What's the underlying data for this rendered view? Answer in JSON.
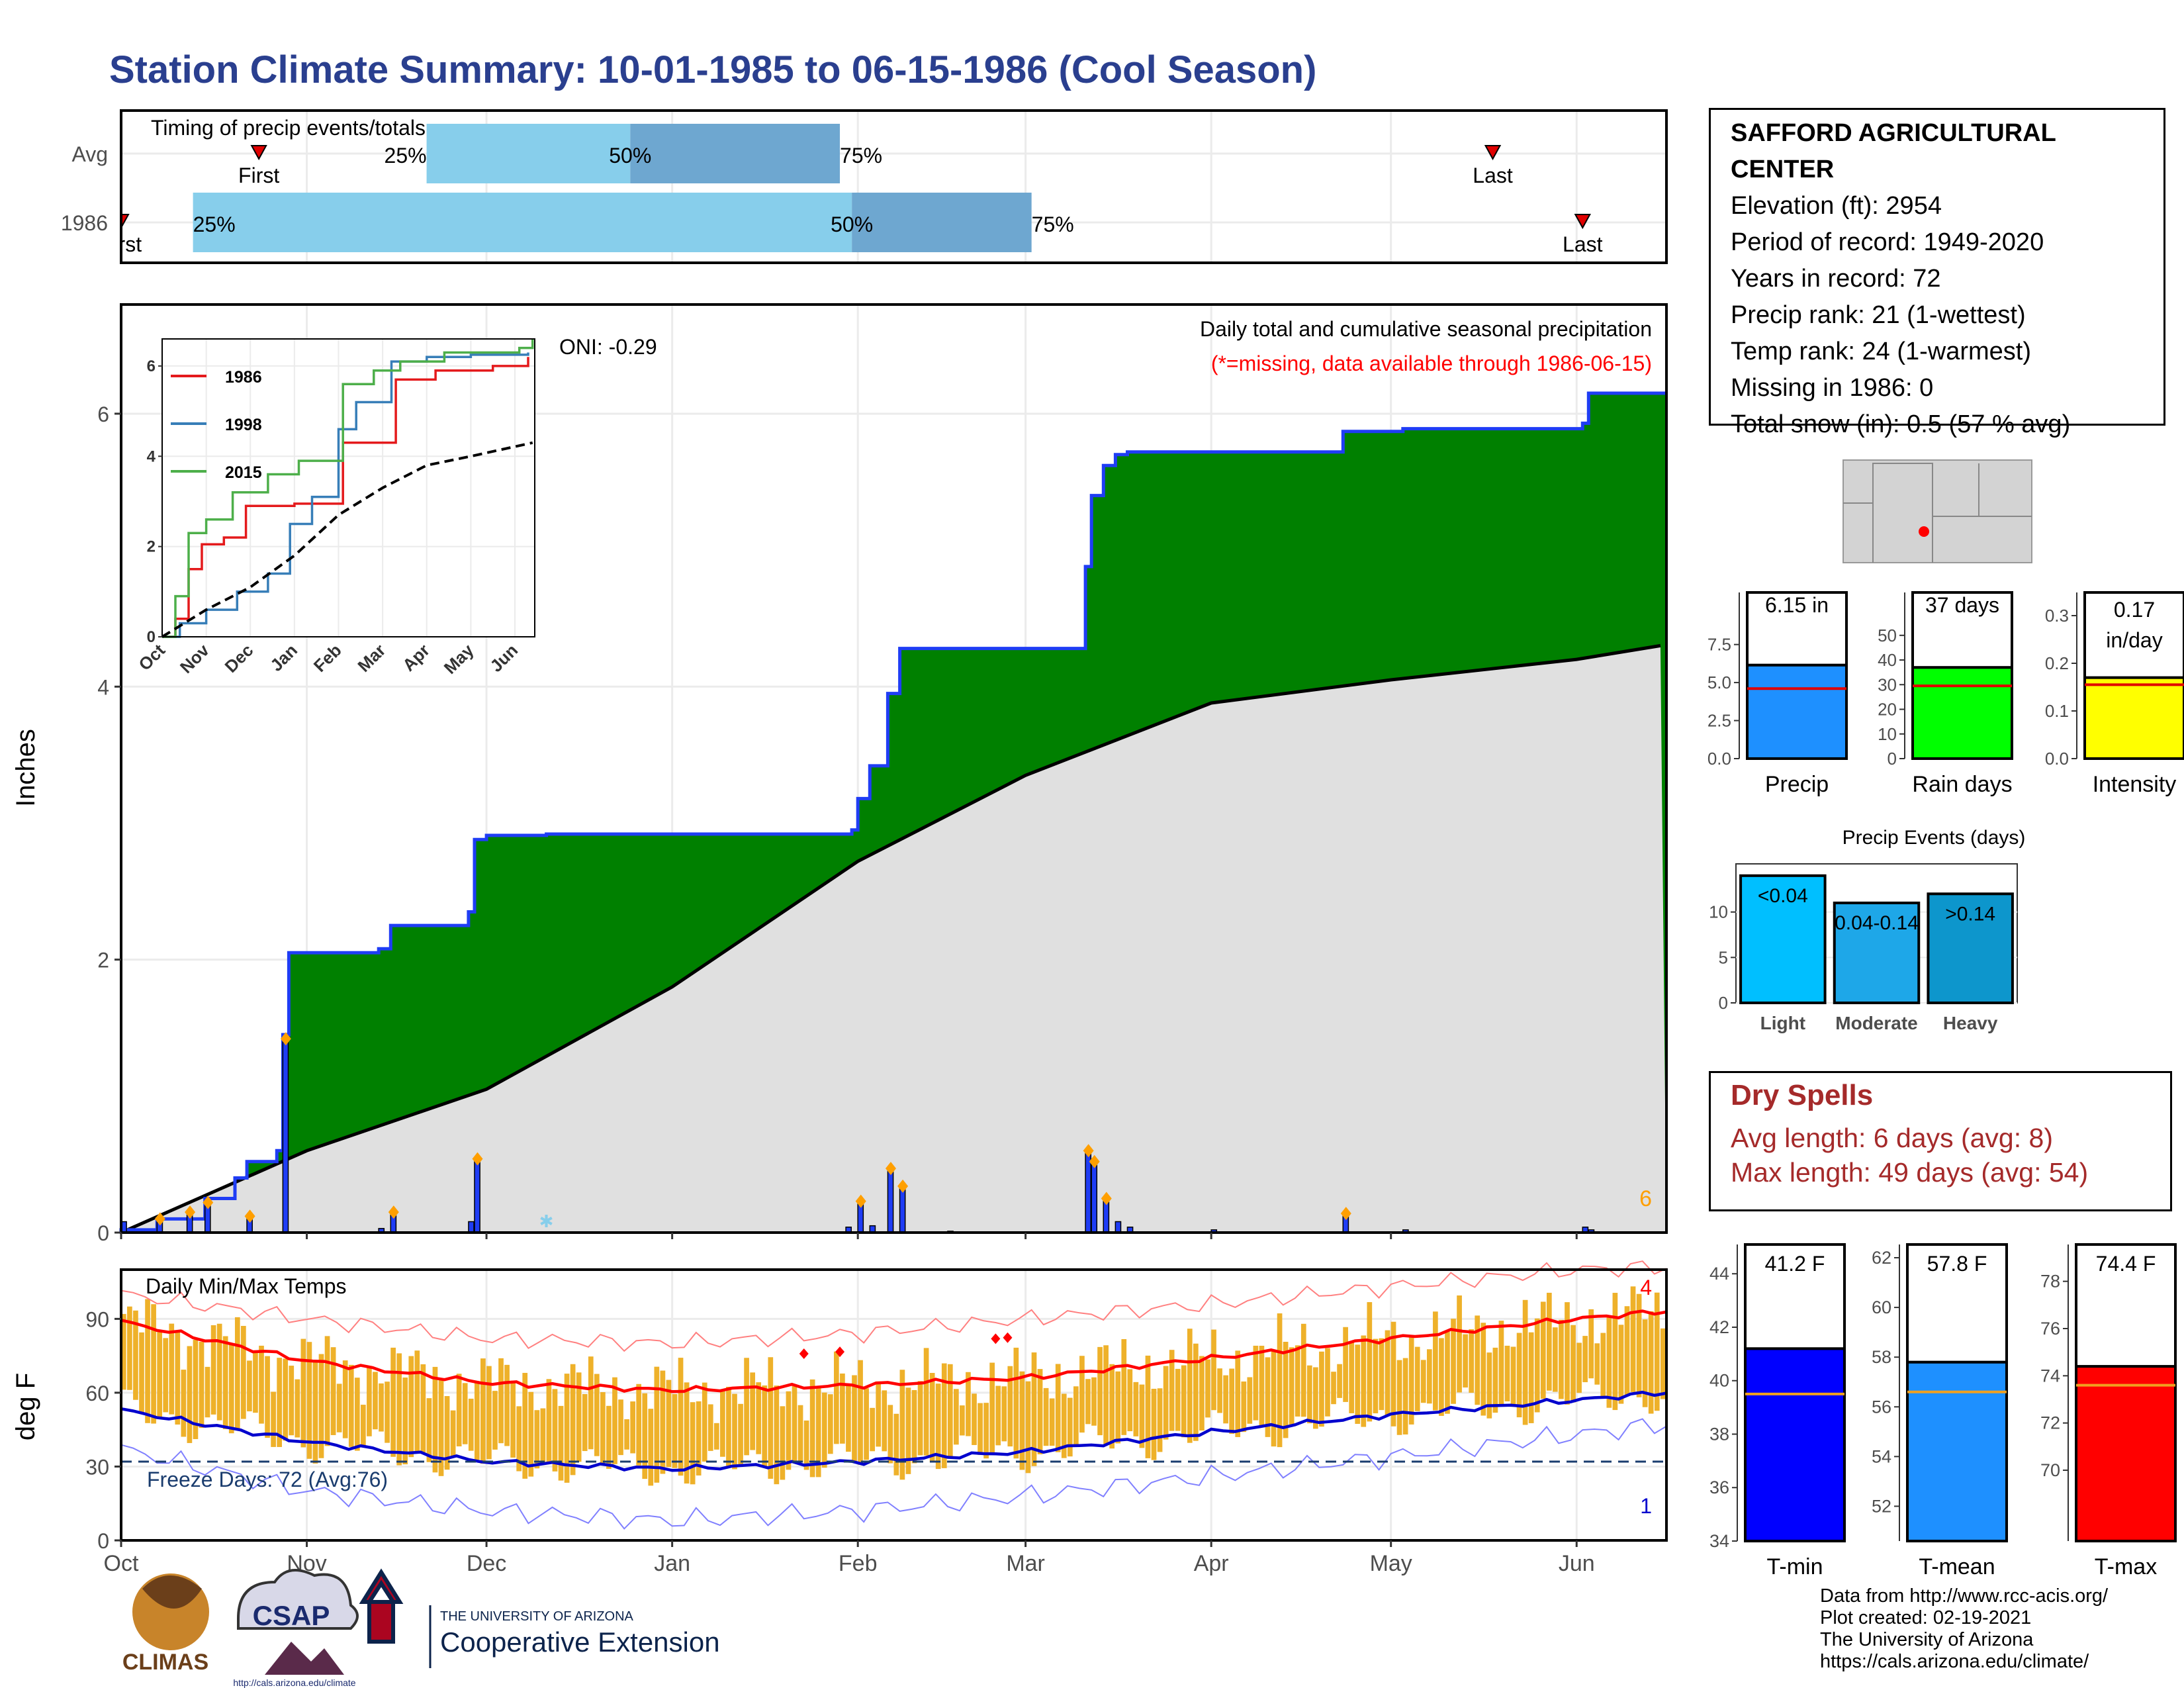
{
  "title": "Station Climate Summary: 10-01-1985 to 06-15-1986 (Cool Season)",
  "colors": {
    "title": "#2a3f8f",
    "precip_fill": "#008000",
    "normal_fill": "#e0e0e0",
    "bar": "#1f3df5",
    "temp_bar": "#eeb12a",
    "tmax": "#ff0000",
    "tmin": "#0000cd"
  },
  "timing_panel": {
    "title": "Timing of precip events/totals",
    "rows": [
      {
        "label": "Avg",
        "first_label": "First",
        "last_label": "Last",
        "first_date": "1985-10-24",
        "last_date": "1986-05-18",
        "p25": "1985-11-21",
        "p50": "1985-12-25",
        "p75": "1986-01-29",
        "p25_label": "25%",
        "p50_label": "50%",
        "p75_label": "75%"
      },
      {
        "label": "1986",
        "first_label": "First",
        "last_label": "Last",
        "first_date": "1985-10-01",
        "last_date": "1986-06-02",
        "p25": "1985-10-13",
        "p50": "1986-01-31",
        "p75": "1986-03-02",
        "p25_label": "25%",
        "p50_label": "50%",
        "p75_label": "75%"
      }
    ]
  },
  "oni_label": "ONI: -0.29",
  "precip_panel_title": "Daily total and cumulative seasonal precipitation",
  "precip_panel_note": "(*=missing, data available through 1986-06-15)",
  "precip_ylabel": "Inches",
  "precip_corner_count": "6",
  "temp_panel_title": "Daily Min/Max Temps",
  "temp_ylabel": "deg F",
  "freeze_label": "Freeze Days: 72 (Avg:76)",
  "temp_corner_max": "4",
  "temp_corner_min": "1",
  "x_month_labels": [
    "Oct",
    "Nov",
    "Dec",
    "Jan",
    "Feb",
    "Mar",
    "Apr",
    "May",
    "Jun"
  ],
  "inset_month_labels": [
    "Oct",
    "Nov",
    "Dec",
    "Jan",
    "Feb",
    "Mar",
    "Apr",
    "May",
    "Jun"
  ],
  "station": {
    "name": "SAFFORD AGRICULTURAL CENTER",
    "lines": [
      "Elevation (ft): 2954",
      "Period of record: 1949-2020",
      "Years in record: 72",
      "Precip rank: 21 (1-wettest)",
      "Temp rank: 24 (1-warmest)",
      "Missing in 1986: 0",
      "Total snow (in): 0.5 (57 % avg)"
    ]
  },
  "summary_bars": [
    {
      "label": "Precip",
      "value": 6.15,
      "avg": 4.6,
      "value_label": "6.15 in",
      "ylim": [
        0,
        9.4
      ],
      "ticks": [
        "0.0",
        "2.5",
        "5.0",
        "7.5"
      ],
      "color": "#1e90ff"
    },
    {
      "label": "Rain days",
      "value": 37,
      "avg": 29.5,
      "value_label": "37 days",
      "ylim": [
        0,
        58
      ],
      "ticks": [
        "0",
        "10",
        "20",
        "30",
        "40",
        "50"
      ],
      "color": "#00ff00"
    },
    {
      "label": "Intensity",
      "value": 0.17,
      "avg": 0.155,
      "value_label": "0.17 in/day",
      "ylim": [
        0,
        0.3
      ],
      "ticks": [
        "0.0",
        "0.1",
        "0.2",
        "0.3"
      ],
      "color": "#ffff00"
    }
  ],
  "precip_events": {
    "title": "Precip Events (days)",
    "bars": [
      {
        "label": "Light",
        "value": 14,
        "value_label": "<0.04",
        "color": "#00bfff"
      },
      {
        "label": "Moderate",
        "value": 11,
        "value_label": "0.04-0.14",
        "color": "#1ea7e8"
      },
      {
        "label": "Heavy",
        "value": 12,
        "value_label": ">0.14",
        "color": "#0d96cc"
      }
    ],
    "ticks": [
      "0",
      "5",
      "10"
    ]
  },
  "dry_spells": {
    "title": "Dry Spells",
    "avg_line": "Avg length: 6 days (avg: 8)",
    "max_line": "Max length: 49 days (avg: 54)"
  },
  "temp_bars": [
    {
      "label": "T-min",
      "value": 41.2,
      "avg": 39.5,
      "value_label": "41.2 F",
      "ylim": [
        34,
        44.6
      ],
      "ticks": [
        "34",
        "36",
        "38",
        "40",
        "42",
        "44"
      ],
      "color": "#0000ff"
    },
    {
      "label": "T-mean",
      "value": 57.8,
      "avg": 56.6,
      "value_label": "57.8 F",
      "ylim": [
        50.6,
        62
      ],
      "ticks": [
        "52",
        "54",
        "56",
        "58",
        "60",
        "62"
      ],
      "color": "#1e90ff"
    },
    {
      "label": "T-max",
      "value": 74.4,
      "avg": 73.6,
      "value_label": "74.4 F",
      "ylim": [
        67,
        79
      ],
      "ticks": [
        "70",
        "72",
        "74",
        "76",
        "78"
      ],
      "color": "#ff0000"
    }
  ],
  "logos": {
    "climas": "CLIMAS",
    "csap": "CSAP",
    "csap_url": "http://cals.arizona.edu/climate",
    "ua_small": "THE UNIVERSITY OF ARIZONA",
    "ua_big": "Cooperative Extension"
  },
  "footer": [
    "Data from http://www.rcc-acis.org/",
    "Plot created: 02-19-2021",
    "The University of Arizona",
    "https://cals.arizona.edu/climate/"
  ],
  "chart_data": [
    {
      "type": "area",
      "title": "Daily total and cumulative seasonal precipitation",
      "ylabel": "Inches",
      "ylim": [
        0,
        6.8
      ],
      "x_range": [
        "1985-10-01",
        "1986-06-15"
      ],
      "series": [
        {
          "name": "1986",
          "cumulative_steps": [
            [
              "1985-10-01",
              0.02
            ],
            [
              "1985-10-07",
              0.1
            ],
            [
              "1985-10-15",
              0.25
            ],
            [
              "1985-10-20",
              0.4
            ],
            [
              "1985-10-22",
              0.52
            ],
            [
              "1985-10-27",
              0.6
            ],
            [
              "1985-10-28",
              1.45
            ],
            [
              "1985-10-29",
              2.05
            ],
            [
              "1985-11-13",
              2.08
            ],
            [
              "1985-11-15",
              2.25
            ],
            [
              "1985-11-28",
              2.35
            ],
            [
              "1985-11-29",
              2.88
            ],
            [
              "1985-12-01",
              2.91
            ],
            [
              "1985-12-11",
              2.92
            ],
            [
              "1986-01-31",
              2.95
            ],
            [
              "1986-02-01",
              3.18
            ],
            [
              "1986-02-03",
              3.42
            ],
            [
              "1986-02-06",
              3.95
            ],
            [
              "1986-02-08",
              4.28
            ],
            [
              "1986-03-11",
              4.88
            ],
            [
              "1986-03-12",
              5.4
            ],
            [
              "1986-03-14",
              5.62
            ],
            [
              "1986-03-16",
              5.7
            ],
            [
              "1986-03-18",
              5.72
            ],
            [
              "1986-04-23",
              5.87
            ],
            [
              "1986-05-03",
              5.89
            ],
            [
              "1986-06-02",
              5.93
            ],
            [
              "1986-06-03",
              6.15
            ]
          ]
        },
        {
          "name": "Average cumulative",
          "points": [
            [
              "1985-10-01",
              0.0
            ],
            [
              "1985-11-01",
              0.6
            ],
            [
              "1985-12-01",
              1.05
            ],
            [
              "1986-01-01",
              1.8
            ],
            [
              "1986-02-01",
              2.72
            ],
            [
              "1986-03-01",
              3.35
            ],
            [
              "1986-04-01",
              3.88
            ],
            [
              "1986-05-01",
              4.05
            ],
            [
              "1986-06-01",
              4.2
            ],
            [
              "1986-06-15",
              4.3
            ]
          ]
        }
      ],
      "daily_precip": [
        [
          "1985-10-01",
          0.08
        ],
        [
          "1985-10-07",
          0.1
        ],
        [
          "1985-10-12",
          0.15
        ],
        [
          "1985-10-15",
          0.22
        ],
        [
          "1985-10-22",
          0.12
        ],
        [
          "1985-10-28",
          1.42
        ],
        [
          "1985-11-13",
          0.03
        ],
        [
          "1985-11-15",
          0.15
        ],
        [
          "1985-11-28",
          0.08
        ],
        [
          "1985-11-29",
          0.54
        ],
        [
          "1986-01-30",
          0.04
        ],
        [
          "1986-02-01",
          0.23
        ],
        [
          "1986-02-03",
          0.05
        ],
        [
          "1986-02-06",
          0.47
        ],
        [
          "1986-02-08",
          0.34
        ],
        [
          "1986-02-16",
          0.01
        ],
        [
          "1986-03-11",
          0.6
        ],
        [
          "1986-03-12",
          0.52
        ],
        [
          "1986-03-14",
          0.25
        ],
        [
          "1986-03-16",
          0.08
        ],
        [
          "1986-03-18",
          0.04
        ],
        [
          "1986-04-01",
          0.02
        ],
        [
          "1986-04-23",
          0.14
        ],
        [
          "1986-05-03",
          0.02
        ],
        [
          "1986-06-02",
          0.04
        ],
        [
          "1986-06-03",
          0.02
        ]
      ]
    },
    {
      "type": "line",
      "title": "",
      "x_categories": [
        "Oct",
        "Nov",
        "Dec",
        "Jan",
        "Feb",
        "Mar",
        "Apr",
        "May",
        "Jun"
      ],
      "ylim": [
        0,
        6.6
      ],
      "series": [
        {
          "name": "1986",
          "color": "#e41a1c",
          "points": [
            [
              0,
              0
            ],
            [
              0.3,
              0.4
            ],
            [
              0.6,
              1.5
            ],
            [
              0.9,
              2.05
            ],
            [
              1.4,
              2.2
            ],
            [
              1.9,
              2.9
            ],
            [
              3.0,
              2.95
            ],
            [
              4.1,
              4.3
            ],
            [
              5.3,
              5.7
            ],
            [
              6.2,
              5.9
            ],
            [
              7.5,
              6.0
            ],
            [
              8.3,
              6.2
            ]
          ]
        },
        {
          "name": "1998",
          "color": "#377eb8",
          "points": [
            [
              0,
              0
            ],
            [
              0.4,
              0.3
            ],
            [
              1.0,
              0.6
            ],
            [
              1.7,
              1.0
            ],
            [
              2.4,
              1.4
            ],
            [
              2.9,
              2.5
            ],
            [
              3.4,
              3.1
            ],
            [
              4.0,
              4.6
            ],
            [
              4.4,
              5.2
            ],
            [
              5.2,
              6.1
            ],
            [
              6.0,
              6.2
            ],
            [
              7.0,
              6.25
            ],
            [
              8.3,
              6.3
            ]
          ]
        },
        {
          "name": "2015",
          "color": "#4daf4a",
          "points": [
            [
              0,
              0
            ],
            [
              0.3,
              0.9
            ],
            [
              0.6,
              2.3
            ],
            [
              1.0,
              2.6
            ],
            [
              1.6,
              3.2
            ],
            [
              2.4,
              3.6
            ],
            [
              3.1,
              3.9
            ],
            [
              4.1,
              5.6
            ],
            [
              4.8,
              5.9
            ],
            [
              5.4,
              6.1
            ],
            [
              6.4,
              6.3
            ],
            [
              8.1,
              6.4
            ],
            [
              8.4,
              6.6
            ]
          ]
        },
        {
          "name": "Average",
          "color": "#000000",
          "points": [
            [
              0,
              0
            ],
            [
              1.0,
              0.6
            ],
            [
              2.0,
              1.1
            ],
            [
              3.0,
              1.8
            ],
            [
              4.0,
              2.7
            ],
            [
              5.0,
              3.3
            ],
            [
              6.0,
              3.8
            ],
            [
              7.0,
              4.0
            ],
            [
              8.4,
              4.3
            ]
          ]
        }
      ]
    },
    {
      "type": "bar",
      "title": "Daily Min/Max Temps",
      "ylabel": "deg F",
      "ylim": [
        0,
        110
      ],
      "x_range": [
        "1985-10-01",
        "1986-06-15"
      ],
      "series": [
        {
          "name": "Avg Tmax",
          "points": [
            [
              "1985-10-01",
              89
            ],
            [
              "1985-11-01",
              73
            ],
            [
              "1985-12-01",
              64
            ],
            [
              "1986-01-01",
              61
            ],
            [
              "1986-02-01",
              63
            ],
            [
              "1986-03-01",
              66
            ],
            [
              "1986-04-01",
              74
            ],
            [
              "1986-05-01",
              82
            ],
            [
              "1986-06-01",
              90
            ],
            [
              "1986-06-15",
              93
            ]
          ]
        },
        {
          "name": "Avg Tmin",
          "points": [
            [
              "1985-10-01",
              53
            ],
            [
              "1985-11-01",
              40
            ],
            [
              "1985-12-01",
              32
            ],
            [
              "1986-01-01",
              29
            ],
            [
              "1986-02-01",
              32
            ],
            [
              "1986-03-01",
              36
            ],
            [
              "1986-04-01",
              44
            ],
            [
              "1986-05-01",
              51
            ],
            [
              "1986-06-01",
              57
            ],
            [
              "1986-06-15",
              60
            ]
          ]
        },
        {
          "name": "Record Tmax",
          "points": [
            [
              "1985-10-01",
              100
            ],
            [
              "1985-11-01",
              90
            ],
            [
              "1985-12-01",
              82
            ],
            [
              "1986-01-01",
              80
            ],
            [
              "1986-02-01",
              84
            ],
            [
              "1986-03-01",
              90
            ],
            [
              "1986-04-01",
              96
            ],
            [
              "1986-05-01",
              103
            ],
            [
              "1986-06-01",
              110
            ],
            [
              "1986-06-15",
              111
            ]
          ]
        },
        {
          "name": "Record Tmin",
          "points": [
            [
              "1985-10-01",
              37
            ],
            [
              "1985-11-01",
              20
            ],
            [
              "1985-12-01",
              12
            ],
            [
              "1986-01-01",
              8
            ],
            [
              "1986-02-01",
              12
            ],
            [
              "1986-03-01",
              18
            ],
            [
              "1986-04-01",
              26
            ],
            [
              "1986-05-01",
              34
            ],
            [
              "1986-06-01",
              43
            ],
            [
              "1986-06-15",
              47
            ]
          ]
        }
      ],
      "freeze_line": 32
    }
  ]
}
